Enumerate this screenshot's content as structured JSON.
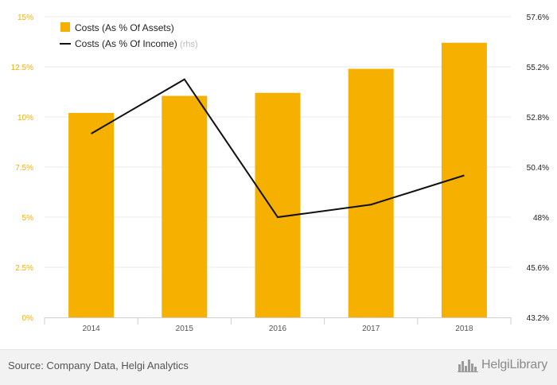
{
  "chart_data": {
    "type": "bar",
    "categories": [
      "2014",
      "2015",
      "2016",
      "2017",
      "2018"
    ],
    "series": [
      {
        "name": "Costs (As % Of Assets)",
        "kind": "bar",
        "axis": "left",
        "values": [
          10.2,
          11.05,
          11.2,
          12.4,
          13.7
        ],
        "color": "#f5b000"
      },
      {
        "name": "Costs (As % Of Income)",
        "kind": "line",
        "axis": "right",
        "values": [
          52.0,
          54.6,
          48.0,
          48.6,
          50.0
        ],
        "color": "#111111"
      }
    ],
    "left_axis": {
      "ylim": [
        0,
        15
      ],
      "ticks": [
        {
          "value": 0,
          "label": "0%"
        },
        {
          "value": 2.5,
          "label": "2.5%"
        },
        {
          "value": 5,
          "label": "5%"
        },
        {
          "value": 7.5,
          "label": "7.5%"
        },
        {
          "value": 10,
          "label": "10%"
        },
        {
          "value": 12.5,
          "label": "12.5%"
        },
        {
          "value": 15,
          "label": "15%"
        }
      ],
      "label_color": "#f5b000"
    },
    "right_axis": {
      "ylim": [
        43.2,
        57.6
      ],
      "ticks": [
        {
          "value": 43.2,
          "label": "43.2%"
        },
        {
          "value": 45.6,
          "label": "45.6%"
        },
        {
          "value": 48.0,
          "label": "48%"
        },
        {
          "value": 50.4,
          "label": "50.4%"
        },
        {
          "value": 52.8,
          "label": "52.8%"
        },
        {
          "value": 55.2,
          "label": "55.2%"
        },
        {
          "value": 57.6,
          "label": "57.6%"
        }
      ],
      "label_color": "#222222"
    },
    "legend": {
      "placement": "top-left",
      "rhs_tag": "(rhs)"
    },
    "grid": true,
    "title": "",
    "xlabel": "",
    "ylabel": ""
  },
  "footer": {
    "source": "Source: Company Data, Helgi Analytics",
    "logo_text_a": "Helgi",
    "logo_text_b": "Library",
    "logo_icon": "helgi-skyline-icon"
  }
}
